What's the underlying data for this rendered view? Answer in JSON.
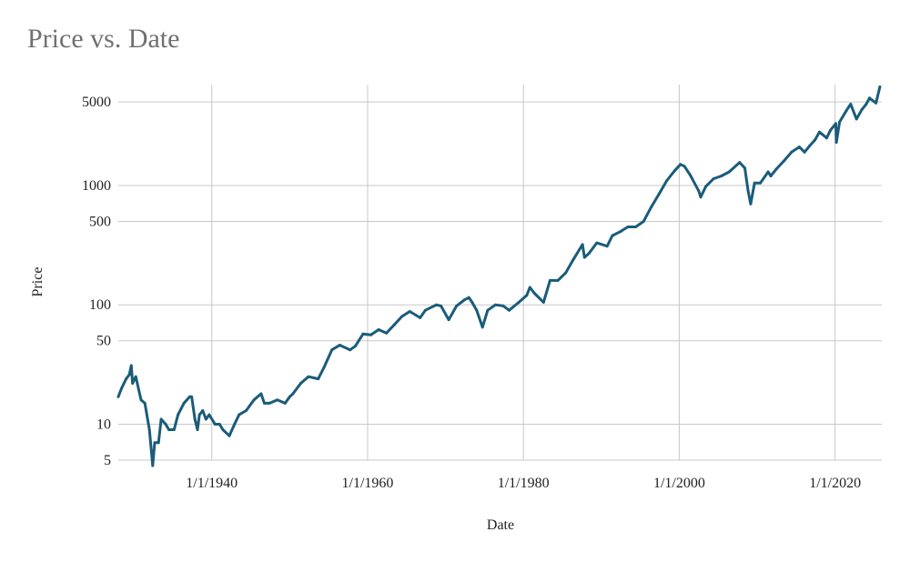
{
  "chart_data": {
    "type": "line",
    "title": "Price vs. Date",
    "xlabel": "Date",
    "ylabel": "Price",
    "xscale": "date",
    "yscale": "log",
    "xlim": [
      "1928-01-01",
      "2025-12-31"
    ],
    "ylim": [
      5,
      7000
    ],
    "grid": true,
    "legend": "none",
    "x_ticks": [
      {
        "date": "1940-01-01",
        "label": "1/1/1940"
      },
      {
        "date": "1960-01-01",
        "label": "1/1/1960"
      },
      {
        "date": "1980-01-01",
        "label": "1/1/1980"
      },
      {
        "date": "2000-01-01",
        "label": "1/1/2000"
      },
      {
        "date": "2020-01-01",
        "label": "1/1/2020"
      }
    ],
    "y_ticks": [
      {
        "value": 5,
        "label": "5"
      },
      {
        "value": 10,
        "label": "10"
      },
      {
        "value": 50,
        "label": "50"
      },
      {
        "value": 100,
        "label": "100"
      },
      {
        "value": 500,
        "label": "500"
      },
      {
        "value": 1000,
        "label": "1000"
      },
      {
        "value": 5000,
        "label": "5000"
      }
    ],
    "colors": {
      "line": "#1a5c7a",
      "grid": "#c8c8c8",
      "title": "#707070"
    },
    "series": [
      {
        "x": [
          "1928-01-01",
          "1928-06-01",
          "1929-01-01",
          "1929-06-01",
          "1929-09-01",
          "1929-11-01",
          "1930-04-01",
          "1930-12-01",
          "1931-06-01",
          "1932-01-01",
          "1932-06-01",
          "1932-09-01",
          "1933-03-01",
          "1933-07-01",
          "1934-02-01",
          "1934-07-01",
          "1935-03-01",
          "1935-09-01",
          "1936-06-01",
          "1937-03-01",
          "1937-06-01",
          "1937-11-01",
          "1938-03-01",
          "1938-06-01",
          "1938-11-01",
          "1939-04-01",
          "1939-09-01",
          "1940-06-01",
          "1941-01-01",
          "1941-06-01",
          "1942-04-01",
          "1942-12-01",
          "1943-07-01",
          "1944-06-01",
          "1945-06-01",
          "1946-05-01",
          "1946-10-01",
          "1947-06-01",
          "1948-06-01",
          "1949-06-01",
          "1950-01-01",
          "1950-06-01",
          "1951-06-01",
          "1952-06-01",
          "1953-09-01",
          "1954-06-01",
          "1955-06-01",
          "1956-06-01",
          "1957-10-01",
          "1958-06-01",
          "1959-06-01",
          "1960-06-01",
          "1961-06-01",
          "1962-06-01",
          "1963-06-01",
          "1964-06-01",
          "1965-06-01",
          "1966-10-01",
          "1967-06-01",
          "1968-11-01",
          "1969-06-01",
          "1970-06-01",
          "1971-06-01",
          "1972-06-01",
          "1973-01-01",
          "1973-06-01",
          "1974-01-01",
          "1974-10-01",
          "1975-06-01",
          "1976-06-01",
          "1977-06-01",
          "1978-03-01",
          "1979-06-01",
          "1980-06-01",
          "1980-11-01",
          "1981-06-01",
          "1982-08-01",
          "1983-06-01",
          "1984-06-01",
          "1985-06-01",
          "1986-06-01",
          "1987-08-01",
          "1987-11-01",
          "1988-06-01",
          "1989-06-01",
          "1990-10-01",
          "1991-06-01",
          "1992-06-01",
          "1993-06-01",
          "1994-06-01",
          "1995-06-01",
          "1996-06-01",
          "1997-06-01",
          "1998-06-01",
          "1999-06-01",
          "2000-03-01",
          "2000-09-01",
          "2001-06-01",
          "2002-07-01",
          "2002-10-01",
          "2003-06-01",
          "2004-06-01",
          "2005-06-01",
          "2006-06-01",
          "2007-10-01",
          "2008-06-01",
          "2008-11-01",
          "2009-03-01",
          "2009-09-01",
          "2010-06-01",
          "2011-06-01",
          "2011-10-01",
          "2012-06-01",
          "2013-06-01",
          "2014-06-01",
          "2015-06-01",
          "2016-02-01",
          "2016-10-01",
          "2017-06-01",
          "2018-01-01",
          "2018-12-01",
          "2019-06-01",
          "2020-02-01",
          "2020-03-01",
          "2020-08-01",
          "2021-06-01",
          "2022-01-01",
          "2022-10-01",
          "2023-06-01",
          "2024-01-01",
          "2024-06-01",
          "2025-04-01",
          "2025-10-01"
        ],
        "y": [
          17,
          20,
          24,
          26,
          31,
          22,
          25,
          16,
          15,
          9,
          4.5,
          7,
          7,
          11,
          10,
          9,
          9,
          12,
          15,
          17,
          17,
          11,
          9,
          12,
          13,
          11,
          12,
          10,
          10,
          9,
          8,
          10,
          12,
          13,
          16,
          18,
          15,
          15,
          16,
          15,
          17,
          18,
          22,
          25,
          24,
          30,
          42,
          46,
          42,
          45,
          57,
          56,
          62,
          58,
          68,
          80,
          88,
          78,
          90,
          100,
          98,
          75,
          98,
          110,
          115,
          105,
          90,
          65,
          90,
          100,
          98,
          90,
          105,
          120,
          140,
          125,
          105,
          160,
          160,
          185,
          240,
          320,
          250,
          270,
          330,
          310,
          380,
          410,
          450,
          450,
          500,
          660,
          850,
          1100,
          1330,
          1500,
          1450,
          1220,
          900,
          800,
          980,
          1140,
          1200,
          1300,
          1560,
          1400,
          900,
          700,
          1050,
          1050,
          1300,
          1200,
          1360,
          1600,
          1900,
          2100,
          1900,
          2150,
          2400,
          2800,
          2500,
          2900,
          3300,
          2300,
          3400,
          4200,
          4800,
          3600,
          4300,
          4800,
          5400,
          4900,
          6700
        ]
      }
    ]
  }
}
